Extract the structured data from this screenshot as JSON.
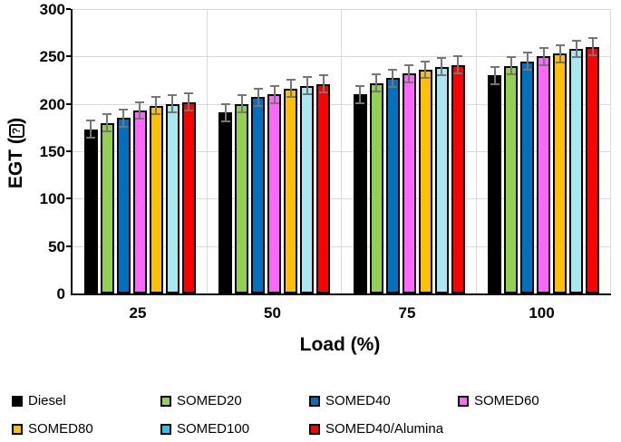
{
  "chart_data": {
    "type": "bar",
    "title": "",
    "xlabel": "Load (%)",
    "ylabel_prefix": "EGT (",
    "ylabel_glyph": "?",
    "ylabel_suffix": ")",
    "categories": [
      "25",
      "50",
      "75",
      "100"
    ],
    "series": [
      {
        "name": "Diesel",
        "color": "#000000",
        "legend_color": "#000000",
        "values": [
          173,
          191,
          210,
          230
        ],
        "errors": [
          10,
          10,
          10,
          10
        ]
      },
      {
        "name": "SOMED20",
        "color": "#92D050",
        "legend_color": "#92D050",
        "values": [
          180,
          200,
          222,
          240
        ],
        "errors": [
          10,
          10,
          10,
          10
        ]
      },
      {
        "name": "SOMED40",
        "color": "#0070C0",
        "legend_color": "#0070C0",
        "values": [
          185,
          207,
          227,
          245
        ],
        "errors": [
          10,
          10,
          10,
          10
        ]
      },
      {
        "name": "SOMED60",
        "color": "#FF66FF",
        "legend_color": "#FF66FF",
        "values": [
          193,
          210,
          232,
          250
        ],
        "errors": [
          10,
          10,
          10,
          10
        ]
      },
      {
        "name": "SOMED80",
        "color": "#FFC000",
        "legend_color": "#FFC000",
        "values": [
          198,
          216,
          236,
          253
        ],
        "errors": [
          10,
          10,
          10,
          10
        ]
      },
      {
        "name": "SOMED100",
        "color": "#A8E8F2",
        "legend_color": "#27C6E8",
        "values": [
          200,
          219,
          239,
          258
        ],
        "errors": [
          10,
          10,
          10,
          10
        ]
      },
      {
        "name": "SOMED40/Alumina",
        "color": "#FF0000",
        "legend_color": "#FF0000",
        "values": [
          202,
          221,
          241,
          260
        ],
        "errors": [
          10,
          10,
          10,
          10
        ]
      }
    ],
    "ylim": [
      0,
      300
    ],
    "ytick_step": 50,
    "grid": true,
    "legend_position": "bottom",
    "colors": {
      "gridline": "#d9d9d9",
      "axis": "#000000",
      "error_bar": "#767676",
      "bar_border": "#000000",
      "background": "#ffffff"
    }
  }
}
